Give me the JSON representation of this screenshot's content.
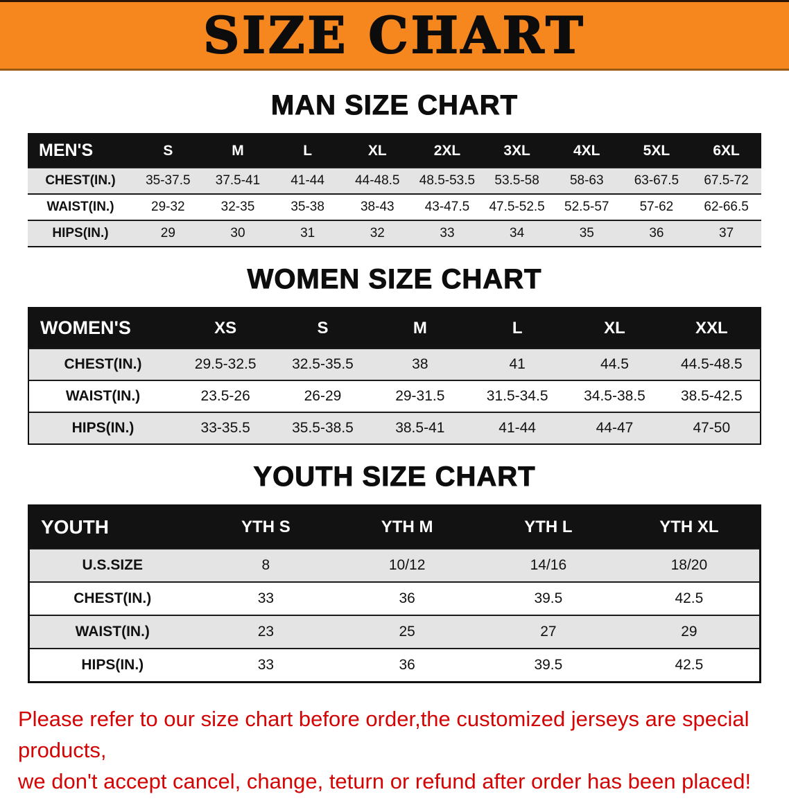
{
  "banner": {
    "title": "SIZE CHART"
  },
  "colors": {
    "banner_orange": "#f6871e",
    "table_header_black": "#121212",
    "row_gray": "#e4e4e4",
    "disclaimer_red": "#d40404"
  },
  "chart_data": [
    {
      "type": "table",
      "title": "MAN SIZE CHART",
      "header": [
        "MEN'S",
        "S",
        "M",
        "L",
        "XL",
        "2XL",
        "3XL",
        "4XL",
        "5XL",
        "6XL"
      ],
      "rows": [
        [
          "CHEST(IN.)",
          "35-37.5",
          "37.5-41",
          "41-44",
          "44-48.5",
          "48.5-53.5",
          "53.5-58",
          "58-63",
          "63-67.5",
          "67.5-72"
        ],
        [
          "WAIST(IN.)",
          "29-32",
          "32-35",
          "35-38",
          "38-43",
          "43-47.5",
          "47.5-52.5",
          "52.5-57",
          "57-62",
          "62-66.5"
        ],
        [
          "HIPS(IN.)",
          "29",
          "30",
          "31",
          "32",
          "33",
          "34",
          "35",
          "36",
          "37"
        ]
      ]
    },
    {
      "type": "table",
      "title": "WOMEN SIZE CHART",
      "header": [
        "WOMEN'S",
        "XS",
        "S",
        "M",
        "L",
        "XL",
        "XXL"
      ],
      "rows": [
        [
          "CHEST(IN.)",
          "29.5-32.5",
          "32.5-35.5",
          "38",
          "41",
          "44.5",
          "44.5-48.5"
        ],
        [
          "WAIST(IN.)",
          "23.5-26",
          "26-29",
          "29-31.5",
          "31.5-34.5",
          "34.5-38.5",
          "38.5-42.5"
        ],
        [
          "HIPS(IN.)",
          "33-35.5",
          "35.5-38.5",
          "38.5-41",
          "41-44",
          "44-47",
          "47-50"
        ]
      ]
    },
    {
      "type": "table",
      "title": "YOUTH SIZE CHART",
      "header": [
        "YOUTH",
        "YTH S",
        "YTH M",
        "YTH L",
        "YTH XL"
      ],
      "rows": [
        [
          "U.S.SIZE",
          "8",
          "10/12",
          "14/16",
          "18/20"
        ],
        [
          "CHEST(IN.)",
          "33",
          "36",
          "39.5",
          "42.5"
        ],
        [
          "WAIST(IN.)",
          "23",
          "25",
          "27",
          "29"
        ],
        [
          "HIPS(IN.)",
          "33",
          "36",
          "39.5",
          "42.5"
        ]
      ]
    }
  ],
  "footer": {
    "line1": "Please refer to our size chart before order,the customized jerseys are special products,",
    "line2": "we don't accept cancel, change, teturn or refund after order has been placed!"
  }
}
